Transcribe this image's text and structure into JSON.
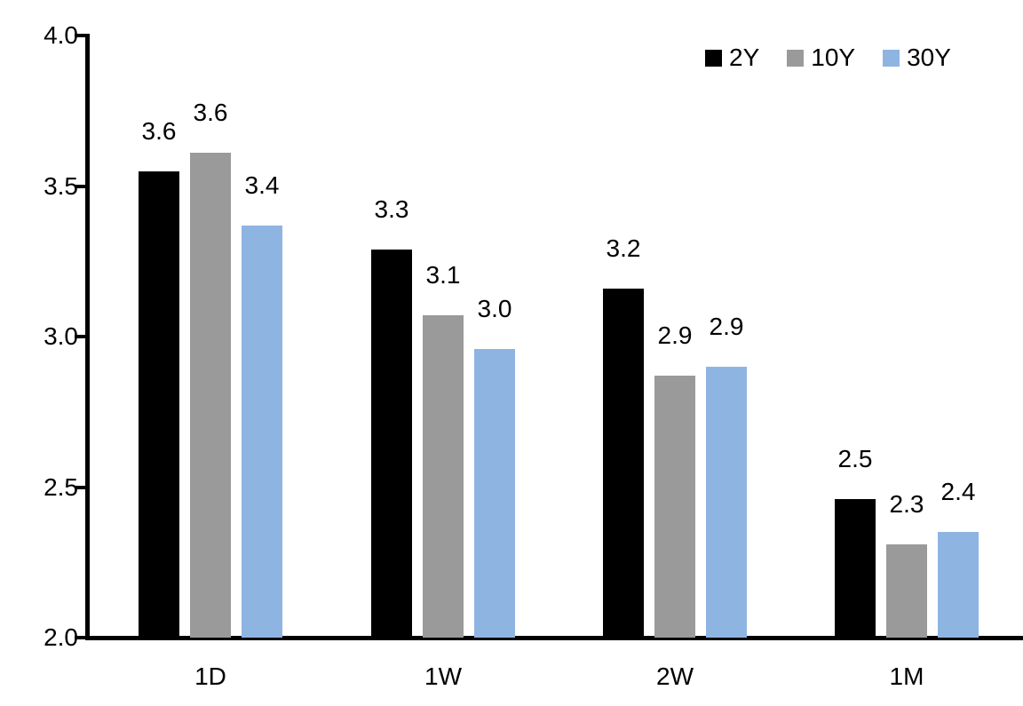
{
  "chart_data": {
    "type": "bar",
    "title": "",
    "xlabel": "",
    "ylabel": "",
    "categories": [
      "1D",
      "1W",
      "2W",
      "1M"
    ],
    "series": [
      {
        "name": "2Y",
        "color": "#000000",
        "values": [
          3.55,
          3.29,
          3.16,
          2.46
        ],
        "data_labels": [
          "3.6",
          "3.3",
          "3.2",
          "2.5"
        ]
      },
      {
        "name": "10Y",
        "color": "#9A9A9A",
        "values": [
          3.61,
          3.07,
          2.87,
          2.31
        ],
        "data_labels": [
          "3.6",
          "3.1",
          "2.9",
          "2.3"
        ]
      },
      {
        "name": "30Y",
        "color": "#8EB4E2",
        "values": [
          3.37,
          2.96,
          2.9,
          2.35
        ],
        "data_labels": [
          "3.4",
          "3.0",
          "2.9",
          "2.4"
        ]
      }
    ],
    "ylim": [
      2.0,
      4.0
    ],
    "yticks": [
      {
        "value": 4.0,
        "label": "4.0"
      },
      {
        "value": 3.5,
        "label": "3.5"
      },
      {
        "value": 3.0,
        "label": "3.0"
      },
      {
        "value": 2.5,
        "label": "2.5"
      },
      {
        "value": 2.0,
        "label": "2.0"
      }
    ],
    "grid": false,
    "legend": {
      "position": "top-right",
      "entries": [
        "2Y",
        "10Y",
        "30Y"
      ]
    },
    "axis_color": "#000000",
    "text_color": "#000000",
    "background": "#FFFFFF"
  }
}
